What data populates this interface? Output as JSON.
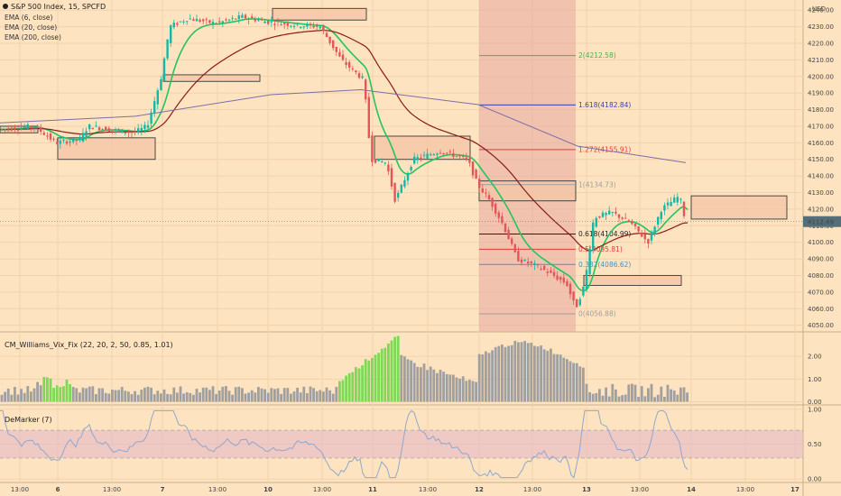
{
  "colors": {
    "background": "#fde3bf",
    "grid": "#f1d3ad",
    "candle_up": "#14b8a6",
    "candle_down": "#e15759",
    "ema_fast": "#22c55e",
    "ema_slow": "#8b1a1a",
    "ema_long": "#7a6fa8",
    "fib_zone": "#e8a8a0",
    "box_fill": "#f5c7a9",
    "vix_green": "#7ed957",
    "vix_gray": "#a0a0a0",
    "demarker_line": "#8fa8d0",
    "demarker_band": "#e6b8c8",
    "price_badge": "#546e7a"
  },
  "legend": {
    "title": "S&P 500 Index, 15, SPCFD",
    "ema_fast": "EMA (6, close)",
    "ema_slow": "EMA (20, close)",
    "ema_long": "EMA (200, close)"
  },
  "currency_label": "USD",
  "current_price": "4112.49",
  "indicators": {
    "vix_fix": "CM_Williams_Vix_Fix (22, 20, 2, 50, 0.85, 1.01)",
    "demarker": "DeMarker (7)"
  },
  "chart_data": {
    "type": "candlestick",
    "price_axis": {
      "ticks": [
        "4240.00",
        "4230.00",
        "4220.00",
        "4210.00",
        "4200.00",
        "4190.00",
        "4180.00",
        "4170.00",
        "4160.00",
        "4150.00",
        "4140.00",
        "4130.00",
        "4120.00",
        "4110.00",
        "4100.00",
        "4090.00",
        "4080.00",
        "4070.00",
        "4060.00",
        "4050.00"
      ],
      "range": [
        4046,
        4245
      ]
    },
    "time_axis": {
      "labels": [
        "13:00",
        "6",
        "13:00",
        "7",
        "13:00",
        "10",
        "13:00",
        "11",
        "13:00",
        "12",
        "13:00",
        "13",
        "13:00",
        "14",
        "13:00",
        "17"
      ]
    },
    "vix_axis": {
      "ticks": [
        "2.00",
        "1.00",
        "0.00"
      ],
      "range": [
        -0.1,
        3.0
      ]
    },
    "demarker_axis": {
      "ticks": [
        "1.00",
        "0.50",
        "0.00"
      ],
      "range": [
        -0.05,
        1.05
      ]
    },
    "fibonacci": {
      "levels": [
        {
          "ratio": "2",
          "price": 4212.58,
          "label": "2(4212.58)",
          "color": "#4caf50"
        },
        {
          "ratio": "1.618",
          "price": 4182.84,
          "label": "1.618(4182.84)",
          "color": "#3f3fa8"
        },
        {
          "ratio": "1.272",
          "price": 4155.91,
          "label": "1.272(4155.91)",
          "color": "#e53935"
        },
        {
          "ratio": "1",
          "price": 4134.73,
          "label": "1(4134.73)",
          "color": "#9e9e9e"
        },
        {
          "ratio": "0.618",
          "price": 4104.99,
          "label": "0.618(4104.99)",
          "color": "#222222"
        },
        {
          "ratio": "0.5",
          "price": 4095.81,
          "label": "0.5(4095.81)",
          "color": "#e53935"
        },
        {
          "ratio": "0.382",
          "price": 4086.62,
          "label": "0.382(4086.62)",
          "color": "#4a90c2"
        },
        {
          "ratio": "0",
          "price": 4056.88,
          "label": "0(4056.88)",
          "color": "#9e9e9e"
        }
      ]
    },
    "zones": [
      {
        "price_low": 4166,
        "price_high": 4170
      },
      {
        "price_low": 4150,
        "price_high": 4163
      },
      {
        "price_low": 4197,
        "price_high": 4201
      },
      {
        "price_low": 4234,
        "price_high": 4241
      },
      {
        "price_low": 4150,
        "price_high": 4164
      },
      {
        "price_low": 4125,
        "price_high": 4137
      },
      {
        "price_low": 4074,
        "price_high": 4080
      },
      {
        "price_low": 4114,
        "price_high": 4128
      }
    ],
    "series": [
      {
        "name": "EMA (6, close)"
      },
      {
        "name": "EMA (20, close)"
      },
      {
        "name": "EMA (200, close)"
      }
    ]
  }
}
